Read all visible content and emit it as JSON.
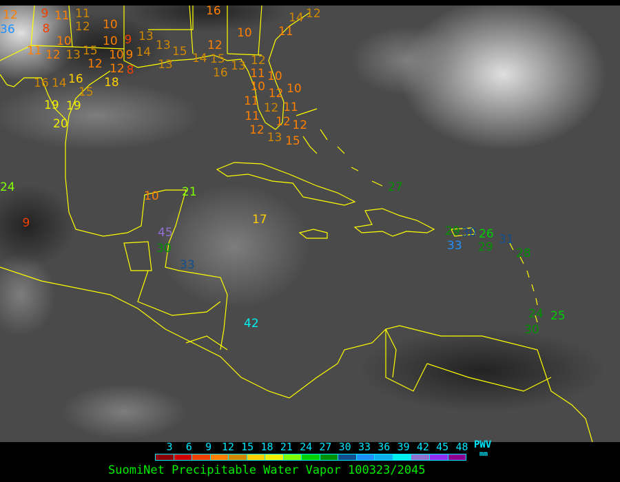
{
  "title": "SuomiNet Precipitable Water Vapor 100323/2045",
  "legend": {
    "unit_label": "PWV",
    "unit": "mm",
    "ticks": [
      "3",
      "6",
      "9",
      "12",
      "15",
      "18",
      "21",
      "24",
      "27",
      "30",
      "33",
      "36",
      "39",
      "42",
      "45",
      "48"
    ],
    "colors": [
      "#8b0000",
      "#d00000",
      "#f04000",
      "#ff8000",
      "#d08800",
      "#ffd000",
      "#f0f000",
      "#80ff00",
      "#00d000",
      "#009000",
      "#104f8f",
      "#2090ff",
      "#10b0f0",
      "#00f0f0",
      "#9070d0",
      "#9030f0",
      "#900090"
    ]
  },
  "map": {
    "coastline_color": "#ffff00",
    "stations": [
      {
        "value": "12",
        "color": "#ff8000"
      },
      {
        "value": "9",
        "color": "#f04000"
      },
      {
        "value": "8",
        "color": "#f04000"
      },
      {
        "value": "11",
        "color": "#ff8000"
      },
      {
        "value": "11",
        "color": "#d08800"
      },
      {
        "value": "12",
        "color": "#d08800"
      },
      {
        "value": "10",
        "color": "#ff8000"
      },
      {
        "value": "10",
        "color": "#ff8000"
      },
      {
        "value": "11",
        "color": "#ff8000"
      },
      {
        "value": "12",
        "color": "#ff8000"
      },
      {
        "value": "13",
        "color": "#d08800"
      },
      {
        "value": "15",
        "color": "#d08800"
      },
      {
        "value": "12",
        "color": "#ff8000"
      },
      {
        "value": "10",
        "color": "#ff8000"
      },
      {
        "value": "10",
        "color": "#ff8000"
      },
      {
        "value": "9",
        "color": "#f04000"
      },
      {
        "value": "9",
        "color": "#ff8000"
      },
      {
        "value": "13",
        "color": "#d08800"
      },
      {
        "value": "14",
        "color": "#d08800"
      },
      {
        "value": "13",
        "color": "#d08800"
      },
      {
        "value": "12",
        "color": "#ff8000"
      },
      {
        "value": "8",
        "color": "#f04000"
      },
      {
        "value": "15",
        "color": "#d08800"
      },
      {
        "value": "12",
        "color": "#ff8000"
      },
      {
        "value": "10",
        "color": "#ff8000"
      },
      {
        "value": "16",
        "color": "#ff8000"
      },
      {
        "value": "11",
        "color": "#ff8000"
      },
      {
        "value": "14",
        "color": "#d08800"
      },
      {
        "value": "12",
        "color": "#d08800"
      },
      {
        "value": "13",
        "color": "#d08800"
      },
      {
        "value": "14",
        "color": "#d08800"
      },
      {
        "value": "15",
        "color": "#d08800"
      },
      {
        "value": "16",
        "color": "#d08800"
      },
      {
        "value": "13",
        "color": "#d08800"
      },
      {
        "value": "12",
        "color": "#d08800"
      },
      {
        "value": "11",
        "color": "#ff8000"
      },
      {
        "value": "10",
        "color": "#ff8000"
      },
      {
        "value": "10",
        "color": "#ff8000"
      },
      {
        "value": "12",
        "color": "#ff8000"
      },
      {
        "value": "10",
        "color": "#ff8000"
      },
      {
        "value": "11",
        "color": "#ff8000"
      },
      {
        "value": "12",
        "color": "#d08800"
      },
      {
        "value": "11",
        "color": "#ff8000"
      },
      {
        "value": "11",
        "color": "#ff8000"
      },
      {
        "value": "12",
        "color": "#ff8000"
      },
      {
        "value": "12",
        "color": "#ff8000"
      },
      {
        "value": "12",
        "color": "#ff8000"
      },
      {
        "value": "13",
        "color": "#d08800"
      },
      {
        "value": "15",
        "color": "#ff8000"
      },
      {
        "value": "16",
        "color": "#d08800"
      },
      {
        "value": "14",
        "color": "#d08800"
      },
      {
        "value": "16",
        "color": "#ffd000"
      },
      {
        "value": "18",
        "color": "#ffd000"
      },
      {
        "value": "15",
        "color": "#d08800"
      },
      {
        "value": "19",
        "color": "#f0f000"
      },
      {
        "value": "19",
        "color": "#f0f000"
      },
      {
        "value": "20",
        "color": "#f0f000"
      },
      {
        "value": "24",
        "color": "#80ff00"
      },
      {
        "value": "9",
        "color": "#f04000"
      },
      {
        "value": "10",
        "color": "#ff8000"
      },
      {
        "value": "21",
        "color": "#80ff00"
      },
      {
        "value": "17",
        "color": "#ffd000"
      },
      {
        "value": "45",
        "color": "#9070d0"
      },
      {
        "value": "30",
        "color": "#009000"
      },
      {
        "value": "33",
        "color": "#104f8f"
      },
      {
        "value": "42",
        "color": "#00f0f0"
      },
      {
        "value": "27",
        "color": "#009000"
      },
      {
        "value": "29",
        "color": "#009000"
      },
      {
        "value": "33",
        "color": "#2090ff"
      },
      {
        "value": "30",
        "color": "#104f8f"
      },
      {
        "value": "26",
        "color": "#00d000"
      },
      {
        "value": "29",
        "color": "#009000"
      },
      {
        "value": "31",
        "color": "#104f8f"
      },
      {
        "value": "28",
        "color": "#009000"
      },
      {
        "value": "24",
        "color": "#009000"
      },
      {
        "value": "25",
        "color": "#00d000"
      },
      {
        "value": "30",
        "color": "#009000"
      },
      {
        "value": "36",
        "color": "#2090ff"
      }
    ]
  }
}
